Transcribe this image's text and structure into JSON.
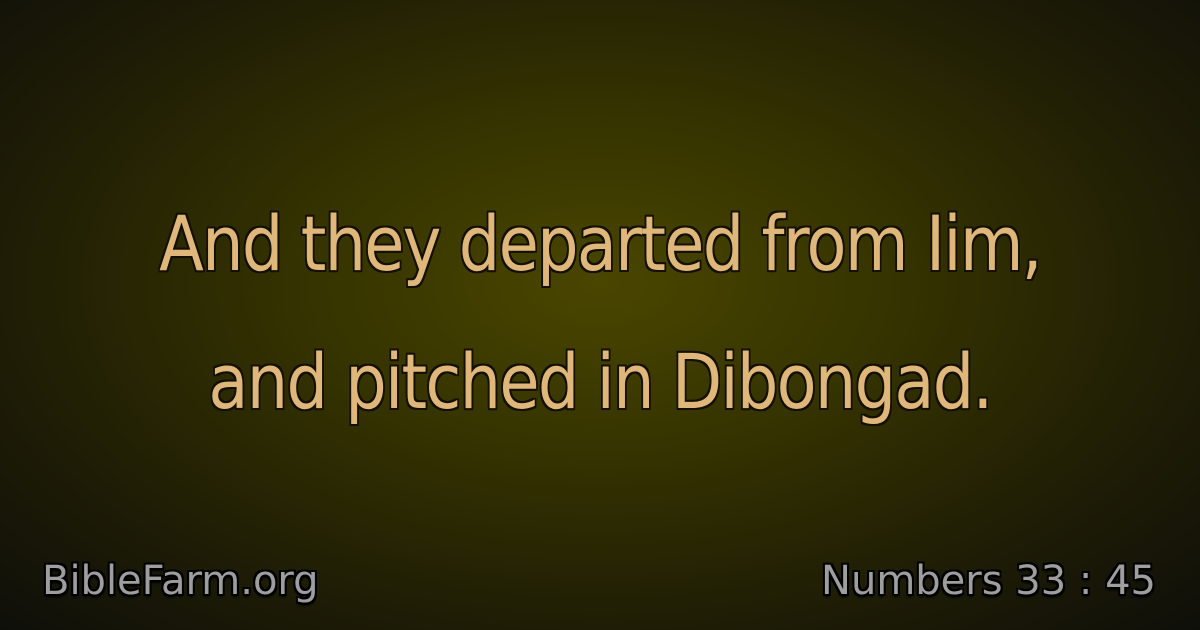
{
  "verse": {
    "lines": [
      "And they departed from Iim,",
      "and pitched in Dibongad."
    ]
  },
  "footer": {
    "site": "BibleFarm.org",
    "reference": "Numbers 33 : 45"
  },
  "colors": {
    "verse_text": "#e0b77a",
    "footer_text": "#9e9e9e",
    "background_center": "#4a4600",
    "background_edge": "#0f0f0a"
  }
}
